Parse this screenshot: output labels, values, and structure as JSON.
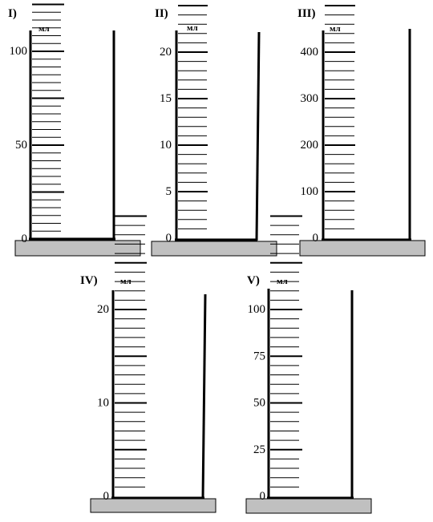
{
  "cylinders": [
    {
      "id": "I",
      "label": "I)",
      "unit": "мл",
      "tick_count": 31,
      "major_every": 6,
      "labels": [
        {
          "tick": 0,
          "text": "0"
        },
        {
          "tick": 12,
          "text": "50"
        },
        {
          "tick": 24,
          "text": "100"
        }
      ]
    },
    {
      "id": "II",
      "label": "II)",
      "unit": "мл",
      "tick_count": 30,
      "major_every": 5,
      "labels": [
        {
          "tick": 0,
          "text": "0"
        },
        {
          "tick": 5,
          "text": "5"
        },
        {
          "tick": 10,
          "text": "10"
        },
        {
          "tick": 15,
          "text": "15"
        },
        {
          "tick": 20,
          "text": "20"
        }
      ]
    },
    {
      "id": "III",
      "label": "III)",
      "unit": "мл",
      "tick_count": 30,
      "major_every": 5,
      "labels": [
        {
          "tick": 0,
          "text": "0"
        },
        {
          "tick": 5,
          "text": "100"
        },
        {
          "tick": 10,
          "text": "200"
        },
        {
          "tick": 15,
          "text": "300"
        },
        {
          "tick": 20,
          "text": "400"
        }
      ]
    },
    {
      "id": "IV",
      "label": "IV)",
      "unit": "мл",
      "tick_count": 31,
      "major_every": 5,
      "labels": [
        {
          "tick": 0,
          "text": "0"
        },
        {
          "tick": 10,
          "text": "10"
        },
        {
          "tick": 20,
          "text": "20"
        }
      ]
    },
    {
      "id": "V",
      "label": "V)",
      "unit": "мл",
      "tick_count": 31,
      "major_every": 5,
      "labels": [
        {
          "tick": 0,
          "text": "0"
        },
        {
          "tick": 5,
          "text": "25"
        },
        {
          "tick": 10,
          "text": "50"
        },
        {
          "tick": 15,
          "text": "75"
        },
        {
          "tick": 20,
          "text": "100"
        }
      ]
    }
  ]
}
